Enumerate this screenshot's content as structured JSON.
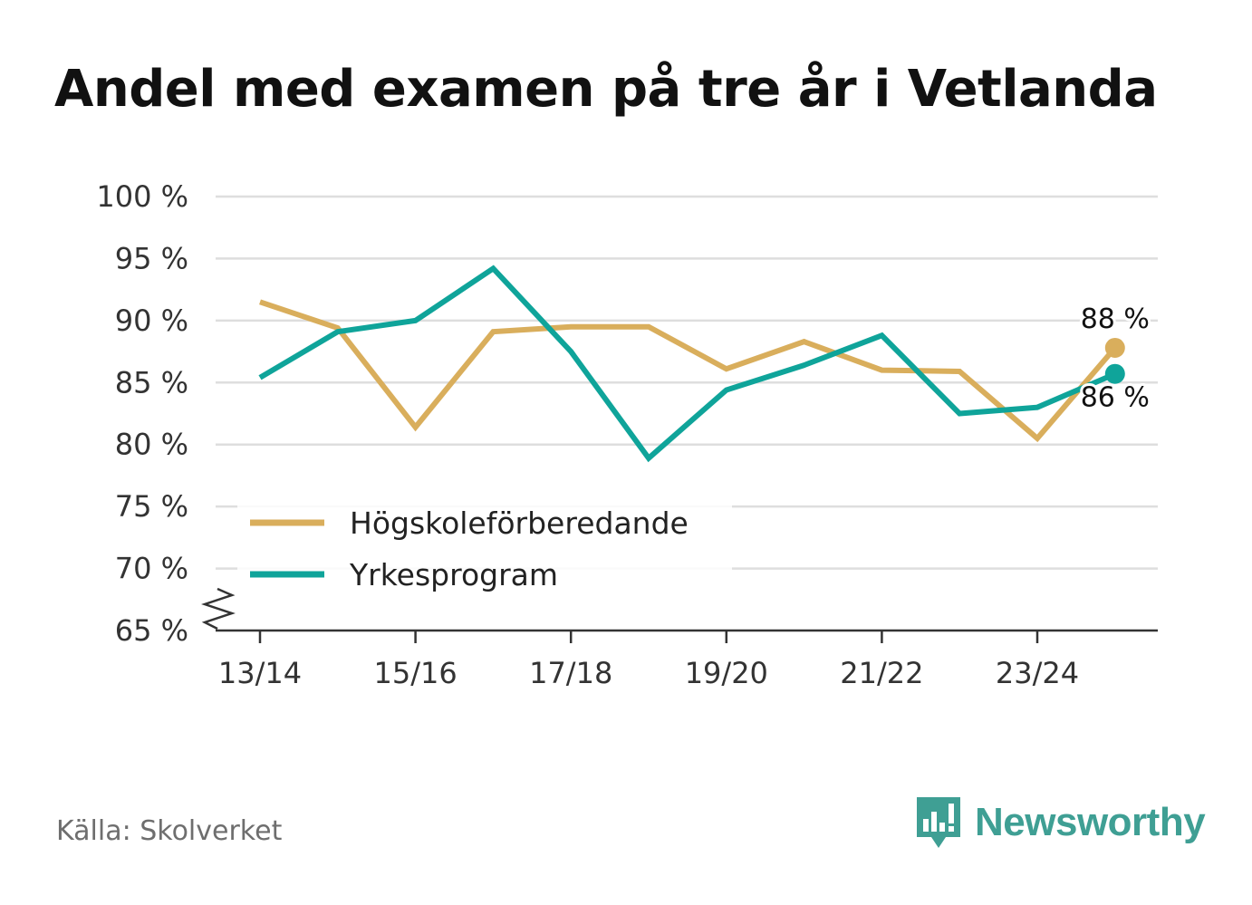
{
  "title": "Andel med examen på tre år i Vetlanda",
  "source": "Källa: Skolverket",
  "brand": {
    "name": "Newsworthy",
    "icon": "newsworthy-logo-icon",
    "color": "#3f9f94"
  },
  "chart_data": {
    "type": "line",
    "title": "Andel med examen på tre år i Vetlanda",
    "xlabel": "",
    "ylabel": "",
    "ylim": [
      65,
      100
    ],
    "yticks": [
      65,
      70,
      75,
      80,
      85,
      90,
      95,
      100
    ],
    "ytick_labels": [
      "65 %",
      "70 %",
      "75 %",
      "80 %",
      "85 %",
      "90 %",
      "95 %",
      "100 %"
    ],
    "categories": [
      "13/14",
      "14/15",
      "15/16",
      "16/17",
      "17/18",
      "18/19",
      "19/20",
      "20/21",
      "21/22",
      "22/23",
      "23/24",
      "24/25"
    ],
    "xtick_labels": [
      "13/14",
      "15/16",
      "17/18",
      "19/20",
      "21/22",
      "23/24"
    ],
    "grid": true,
    "axis_break": true,
    "legend_position": "bottom-left",
    "series": [
      {
        "name": "Högskoleförberedande",
        "color": "#d9ae5c",
        "values": [
          91.5,
          89.4,
          81.4,
          89.1,
          89.5,
          89.5,
          86.1,
          88.3,
          86.0,
          85.9,
          80.5,
          87.8
        ],
        "end_label": "88 %"
      },
      {
        "name": "Yrkesprogram",
        "color": "#0fa49a",
        "values": [
          85.4,
          89.1,
          90.0,
          94.2,
          87.5,
          78.9,
          84.4,
          86.4,
          88.8,
          82.5,
          83.0,
          85.7
        ],
        "end_label": "86 %"
      }
    ]
  }
}
